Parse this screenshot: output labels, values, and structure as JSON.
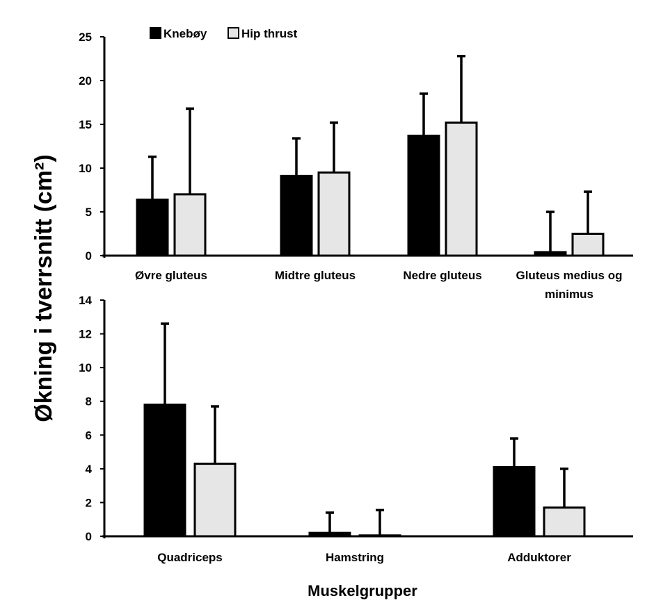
{
  "chart_data": [
    {
      "type": "bar",
      "panel": "top",
      "categories": [
        "Øvre gluteus",
        "Midtre gluteus",
        "Nedre gluteus",
        "Gluteus medius og minimus"
      ],
      "series": [
        {
          "name": "Knebøy",
          "values": [
            6.4,
            9.1,
            13.7,
            0.4
          ],
          "errors": [
            4.9,
            4.3,
            4.8,
            4.6
          ],
          "color": "#000000"
        },
        {
          "name": "Hip thrust",
          "values": [
            7.0,
            9.5,
            15.2,
            2.5
          ],
          "errors": [
            9.8,
            5.7,
            7.6,
            4.8
          ],
          "color": "#e6e6e6"
        }
      ],
      "ylim": [
        0,
        25
      ],
      "yticks": [
        "0",
        "5",
        "10",
        "15",
        "20",
        "25"
      ]
    },
    {
      "type": "bar",
      "panel": "bottom",
      "categories": [
        "Quadriceps",
        "Hamstring",
        "Adduktorer"
      ],
      "series": [
        {
          "name": "Knebøy",
          "values": [
            7.8,
            0.2,
            4.1
          ],
          "errors": [
            4.8,
            1.2,
            1.7
          ],
          "color": "#000000"
        },
        {
          "name": "Hip thrust",
          "values": [
            4.3,
            0.05,
            1.7
          ],
          "errors": [
            3.4,
            1.5,
            2.3
          ],
          "color": "#e6e6e6"
        }
      ],
      "ylim": [
        0,
        14
      ],
      "yticks": [
        "0",
        "2",
        "4",
        "6",
        "8",
        "10",
        "12",
        "14"
      ]
    }
  ],
  "legend": [
    {
      "label": "Knebøy",
      "color": "#000000"
    },
    {
      "label": "Hip thrust",
      "color": "#e6e6e6"
    }
  ],
  "ylabel": "Økning i tverrsnitt (cm²)",
  "xlabel": "Muskelgrupper"
}
